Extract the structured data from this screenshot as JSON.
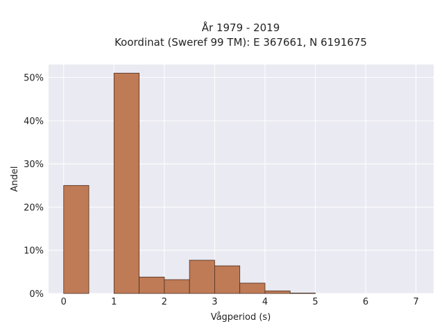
{
  "chart_data": {
    "type": "bar",
    "title_line1": "År 1979 - 2019",
    "title_line2": "Koordinat (Sweref 99 TM): E 367661, N 6191675",
    "xlabel": "Vågperiod (s)",
    "ylabel": "Andel",
    "xlim": [
      -0.3,
      7.35
    ],
    "ylim": [
      0,
      0.53
    ],
    "x_ticks": [
      0,
      1,
      2,
      3,
      4,
      5,
      6,
      7
    ],
    "x_tick_labels": [
      "0",
      "1",
      "2",
      "3",
      "4",
      "5",
      "6",
      "7"
    ],
    "y_ticks": [
      0,
      0.1,
      0.2,
      0.3,
      0.4,
      0.5
    ],
    "y_tick_labels": [
      "0%",
      "10%",
      "20%",
      "30%",
      "40%",
      "50%"
    ],
    "bin_width": 0.5,
    "bins": [
      {
        "x0": 0.0,
        "value": 0.25
      },
      {
        "x0": 0.5,
        "value": 0.0
      },
      {
        "x0": 1.0,
        "value": 0.51
      },
      {
        "x0": 1.5,
        "value": 0.038
      },
      {
        "x0": 2.0,
        "value": 0.032
      },
      {
        "x0": 2.5,
        "value": 0.077
      },
      {
        "x0": 3.0,
        "value": 0.064
      },
      {
        "x0": 3.5,
        "value": 0.024
      },
      {
        "x0": 4.0,
        "value": 0.006
      },
      {
        "x0": 4.5,
        "value": 0.001
      }
    ],
    "grid": true,
    "colors": {
      "bar_fill": "#bf7b56",
      "bar_stroke": "#4a2e20",
      "plot_bg": "#eaeaf2",
      "grid": "#ffffff"
    }
  }
}
